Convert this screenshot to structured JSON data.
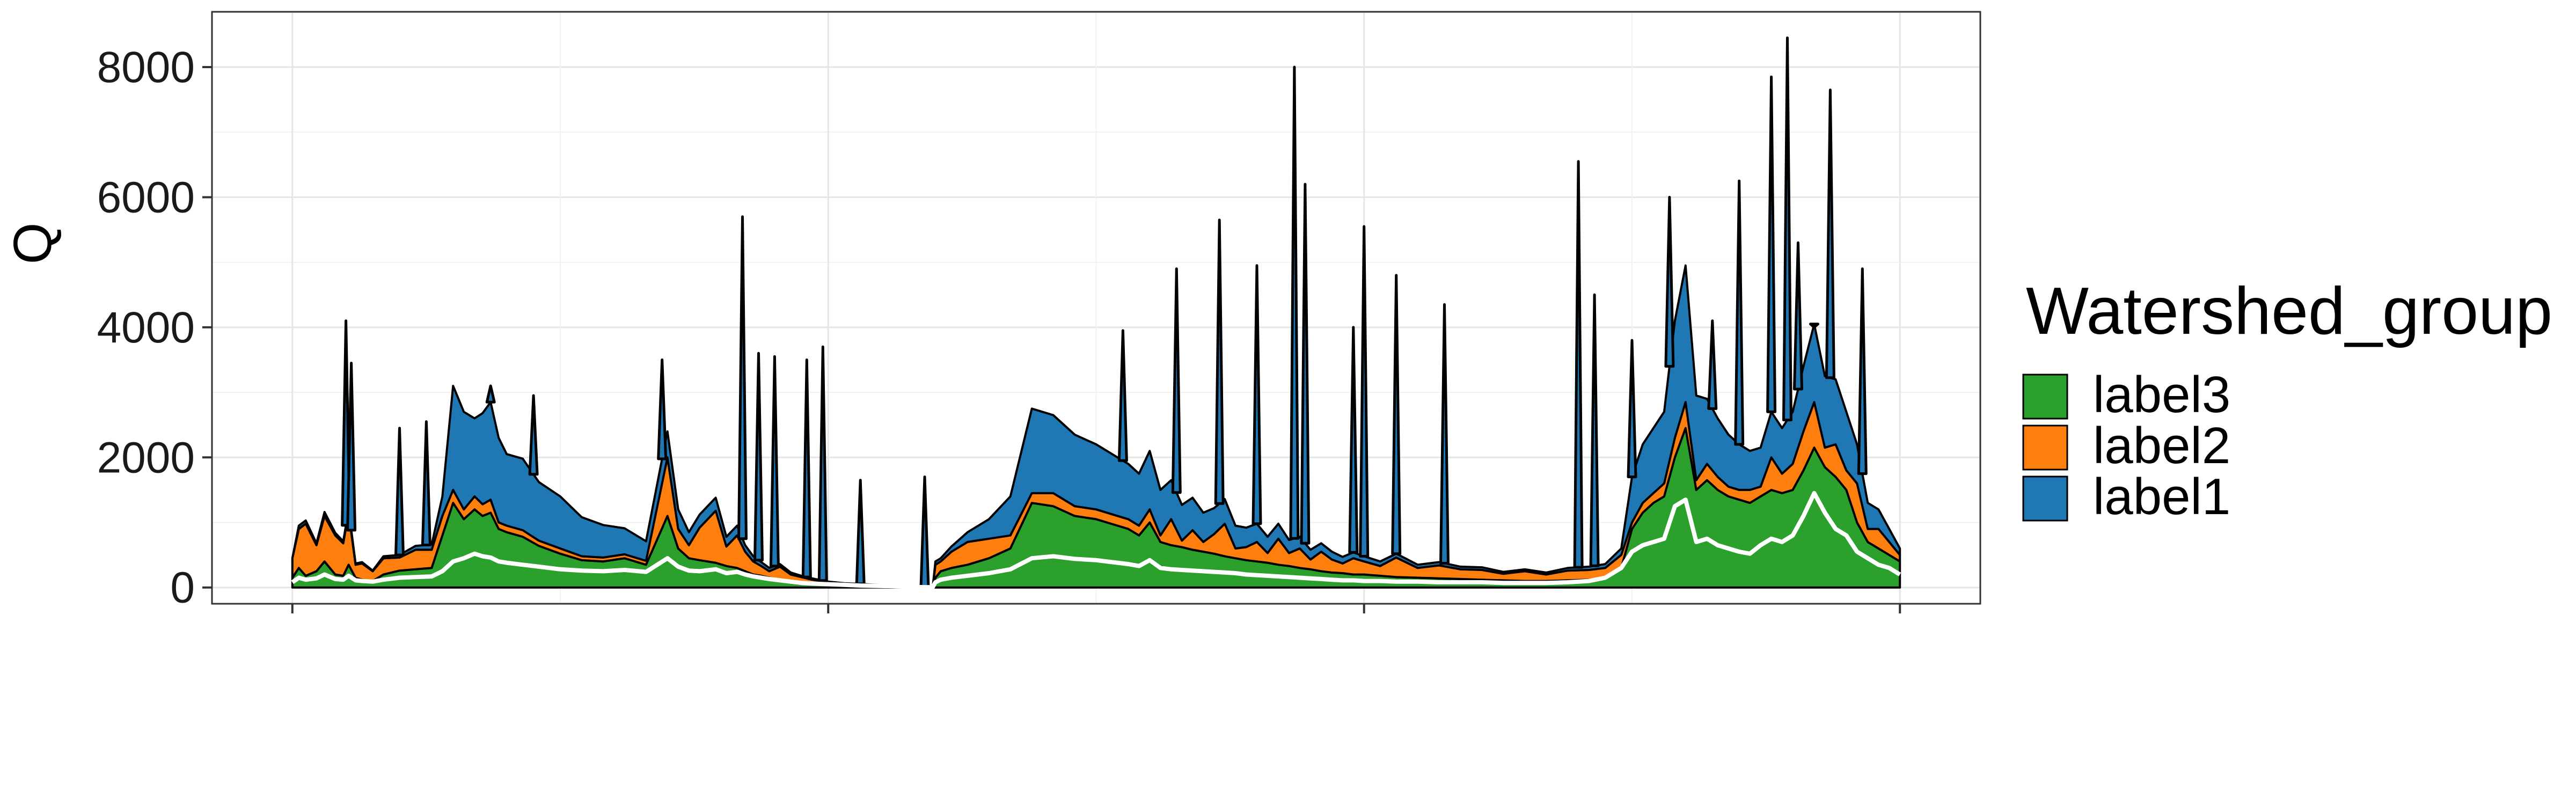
{
  "chart_data": {
    "type": "area",
    "stacked": true,
    "xlabel": "",
    "ylabel": "Q",
    "ylim": [
      -250,
      8850
    ],
    "yticks": [
      0,
      2000,
      4000,
      6000,
      8000
    ],
    "yticklabels": [
      "0",
      "2000",
      "4000",
      "6000",
      "8000"
    ],
    "xlim": [
      -0.15,
      3.15
    ],
    "xticks": [
      0,
      1,
      2,
      3
    ],
    "xticklabels": [
      "",
      "",
      "",
      ""
    ],
    "grid": true,
    "legend": {
      "title": "Watershed_group",
      "position": "right"
    },
    "x": [
      0,
      0.012,
      0.025,
      0.045,
      0.06,
      0.08,
      0.095,
      0.105,
      0.118,
      0.13,
      0.15,
      0.17,
      0.2,
      0.23,
      0.26,
      0.28,
      0.3,
      0.32,
      0.34,
      0.355,
      0.37,
      0.385,
      0.4,
      0.43,
      0.46,
      0.5,
      0.54,
      0.58,
      0.62,
      0.66,
      0.7,
      0.72,
      0.74,
      0.76,
      0.79,
      0.81,
      0.83,
      0.845,
      0.86,
      0.875,
      0.89,
      0.91,
      0.93,
      0.95,
      0.97,
      1.0,
      1.03,
      1.06,
      1.09,
      1.12,
      1.15,
      1.18,
      1.195,
      1.2,
      1.21,
      1.23,
      1.26,
      1.3,
      1.34,
      1.38,
      1.42,
      1.46,
      1.5,
      1.54,
      1.56,
      1.58,
      1.6,
      1.62,
      1.64,
      1.66,
      1.68,
      1.7,
      1.72,
      1.74,
      1.76,
      1.78,
      1.8,
      1.82,
      1.84,
      1.86,
      1.88,
      1.9,
      1.92,
      1.94,
      1.96,
      1.98,
      2.0,
      2.03,
      2.06,
      2.1,
      2.14,
      2.18,
      2.22,
      2.26,
      2.3,
      2.34,
      2.38,
      2.42,
      2.45,
      2.48,
      2.5,
      2.52,
      2.54,
      2.56,
      2.58,
      2.6,
      2.62,
      2.64,
      2.66,
      2.68,
      2.7,
      2.72,
      2.74,
      2.76,
      2.78,
      2.8,
      2.82,
      2.84,
      2.86,
      2.88,
      2.9,
      2.92,
      2.94,
      2.96,
      2.98,
      3.0
    ],
    "series": [
      {
        "name": "label3",
        "color": "#2ca02c",
        "values": [
          150,
          300,
          180,
          250,
          400,
          200,
          180,
          350,
          150,
          120,
          100,
          200,
          260,
          280,
          300,
          800,
          1300,
          1050,
          1200,
          1100,
          1150,
          900,
          850,
          780,
          640,
          520,
          420,
          400,
          450,
          350,
          1100,
          600,
          450,
          420,
          380,
          330,
          300,
          250,
          200,
          180,
          150,
          120,
          100,
          80,
          70,
          60,
          50,
          40,
          30,
          20,
          10,
          5,
          5,
          150,
          250,
          300,
          350,
          450,
          600,
          1300,
          1250,
          1100,
          1050,
          950,
          900,
          800,
          1000,
          700,
          650,
          620,
          580,
          550,
          520,
          480,
          450,
          420,
          400,
          380,
          350,
          330,
          300,
          280,
          250,
          230,
          220,
          200,
          200,
          180,
          160,
          150,
          140,
          130,
          120,
          110,
          100,
          100,
          110,
          120,
          150,
          300,
          900,
          1150,
          1300,
          1400,
          2000,
          2450,
          1500,
          1650,
          1500,
          1400,
          1350,
          1300,
          1400,
          1500,
          1450,
          1500,
          1800,
          2150,
          1850,
          1700,
          1500,
          1000,
          700,
          600,
          500,
          400
        ]
      },
      {
        "name": "label2",
        "color": "#ff7f0e",
        "values": [
          300,
          600,
          800,
          400,
          700,
          600,
          500,
          800,
          200,
          250,
          150,
          250,
          200,
          300,
          280,
          300,
          200,
          150,
          200,
          180,
          200,
          100,
          100,
          100,
          80,
          80,
          60,
          60,
          60,
          60,
          900,
          300,
          200,
          500,
          800,
          300,
          500,
          300,
          200,
          150,
          100,
          200,
          100,
          80,
          50,
          20,
          10,
          10,
          5,
          5,
          5,
          0,
          0,
          200,
          150,
          250,
          350,
          300,
          200,
          150,
          200,
          150,
          150,
          150,
          150,
          150,
          200,
          100,
          400,
          100,
          300,
          150,
          300,
          500,
          150,
          200,
          300,
          150,
          400,
          200,
          300,
          150,
          300,
          200,
          150,
          250,
          200,
          150,
          300,
          150,
          200,
          150,
          150,
          100,
          150,
          100,
          150,
          150,
          150,
          200,
          100,
          150,
          150,
          200,
          300,
          400,
          150,
          250,
          200,
          150,
          150,
          200,
          150,
          500,
          300,
          400,
          600,
          700,
          300,
          500,
          300,
          600,
          200,
          300,
          200,
          100
        ]
      },
      {
        "name": "label1",
        "color": "#1f77b4",
        "values": [
          0,
          50,
          50,
          30,
          60,
          40,
          30,
          50,
          20,
          20,
          10,
          30,
          40,
          60,
          80,
          300,
          1600,
          1500,
          1200,
          1400,
          1500,
          1300,
          1100,
          1100,
          900,
          800,
          600,
          500,
          400,
          300,
          400,
          300,
          200,
          200,
          200,
          150,
          150,
          100,
          80,
          60,
          50,
          40,
          30,
          20,
          20,
          10,
          5,
          5,
          5,
          5,
          5,
          0,
          0,
          50,
          50,
          80,
          150,
          300,
          600,
          1300,
          1200,
          1100,
          1000,
          900,
          850,
          800,
          900,
          700,
          600,
          550,
          500,
          450,
          400,
          380,
          350,
          300,
          280,
          250,
          230,
          200,
          180,
          150,
          130,
          120,
          100,
          90,
          80,
          70,
          60,
          50,
          50,
          40,
          40,
          30,
          30,
          30,
          40,
          50,
          60,
          100,
          700,
          900,
          1000,
          1100,
          1800,
          2100,
          1300,
          1000,
          900,
          800,
          700,
          600,
          600,
          700,
          700,
          800,
          1000,
          1200,
          1100,
          1000,
          900,
          600,
          400,
          300,
          200,
          100
        ]
      }
    ],
    "spikes": [
      {
        "x": 0.1,
        "value": 4100
      },
      {
        "x": 0.11,
        "value": 3450
      },
      {
        "x": 0.2,
        "value": 2450
      },
      {
        "x": 0.25,
        "value": 2550
      },
      {
        "x": 0.37,
        "value": 3100
      },
      {
        "x": 0.45,
        "value": 2950
      },
      {
        "x": 0.69,
        "value": 3500
      },
      {
        "x": 0.84,
        "value": 5700
      },
      {
        "x": 0.87,
        "value": 3600
      },
      {
        "x": 0.9,
        "value": 3550
      },
      {
        "x": 0.96,
        "value": 3500
      },
      {
        "x": 0.99,
        "value": 3700
      },
      {
        "x": 1.06,
        "value": 1650
      },
      {
        "x": 1.18,
        "value": 1700
      },
      {
        "x": 1.55,
        "value": 3950
      },
      {
        "x": 1.65,
        "value": 4900
      },
      {
        "x": 1.73,
        "value": 5650
      },
      {
        "x": 1.8,
        "value": 4950
      },
      {
        "x": 1.87,
        "value": 8000
      },
      {
        "x": 1.89,
        "value": 6200
      },
      {
        "x": 1.98,
        "value": 4000
      },
      {
        "x": 2.0,
        "value": 5550
      },
      {
        "x": 2.06,
        "value": 4800
      },
      {
        "x": 2.15,
        "value": 4350
      },
      {
        "x": 2.4,
        "value": 6550
      },
      {
        "x": 2.43,
        "value": 4500
      },
      {
        "x": 2.5,
        "value": 3800
      },
      {
        "x": 2.57,
        "value": 6000
      },
      {
        "x": 2.65,
        "value": 4100
      },
      {
        "x": 2.7,
        "value": 6250
      },
      {
        "x": 2.76,
        "value": 7850
      },
      {
        "x": 2.79,
        "value": 8450
      },
      {
        "x": 2.81,
        "value": 5300
      },
      {
        "x": 2.84,
        "value": 4000
      },
      {
        "x": 2.87,
        "value": 7650
      },
      {
        "x": 2.93,
        "value": 4900
      }
    ],
    "reference_line": {
      "color": "#ffffff",
      "values": [
        80,
        150,
        120,
        140,
        200,
        130,
        120,
        180,
        110,
        100,
        90,
        120,
        150,
        160,
        170,
        250,
        400,
        450,
        520,
        480,
        460,
        400,
        380,
        350,
        320,
        280,
        260,
        250,
        270,
        240,
        450,
        320,
        260,
        250,
        280,
        220,
        240,
        200,
        170,
        150,
        130,
        110,
        90,
        70,
        60,
        50,
        40,
        30,
        25,
        20,
        10,
        5,
        5,
        80,
        120,
        150,
        180,
        220,
        280,
        450,
        480,
        440,
        420,
        380,
        360,
        330,
        420,
        300,
        280,
        270,
        260,
        250,
        240,
        230,
        220,
        200,
        190,
        180,
        170,
        160,
        150,
        140,
        130,
        120,
        110,
        110,
        100,
        100,
        90,
        90,
        80,
        80,
        80,
        70,
        70,
        70,
        80,
        100,
        150,
        300,
        550,
        650,
        700,
        750,
        1250,
        1350,
        700,
        750,
        650,
        600,
        550,
        520,
        650,
        750,
        700,
        800,
        1100,
        1450,
        1150,
        900,
        800,
        550,
        450,
        350,
        300,
        200
      ]
    }
  }
}
